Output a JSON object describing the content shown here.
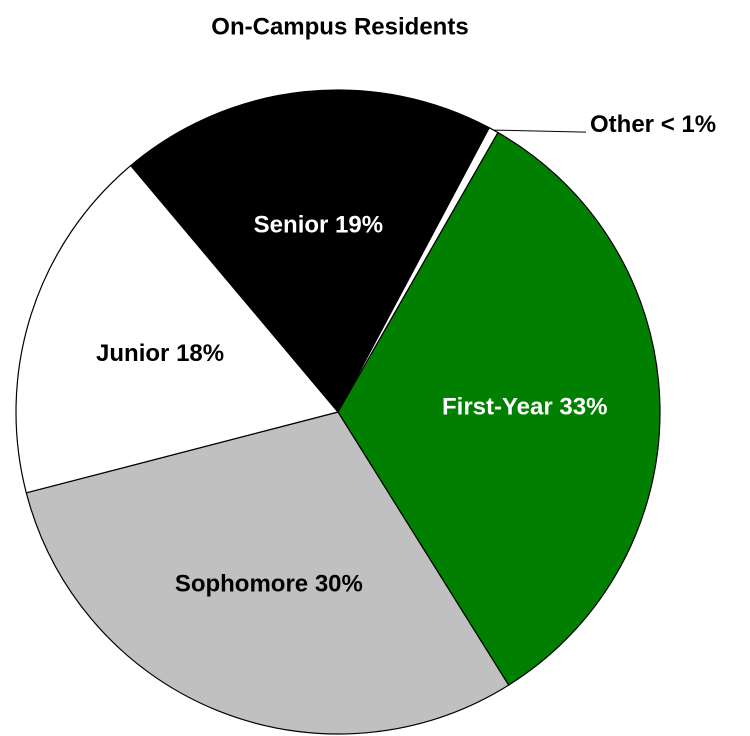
{
  "chart_data": {
    "type": "pie",
    "title": "On-Campus Residents",
    "categories": [
      "Other",
      "First-Year",
      "Sophomore",
      "Junior",
      "Senior"
    ],
    "values": [
      0.5,
      33,
      30,
      18,
      19
    ],
    "value_labels": [
      "< 1%",
      "33%",
      "30%",
      "18%",
      "19%"
    ],
    "colors": [
      "#ffffff",
      "#007f00",
      "#c0c0c0",
      "#ffffff",
      "#000000"
    ]
  }
}
